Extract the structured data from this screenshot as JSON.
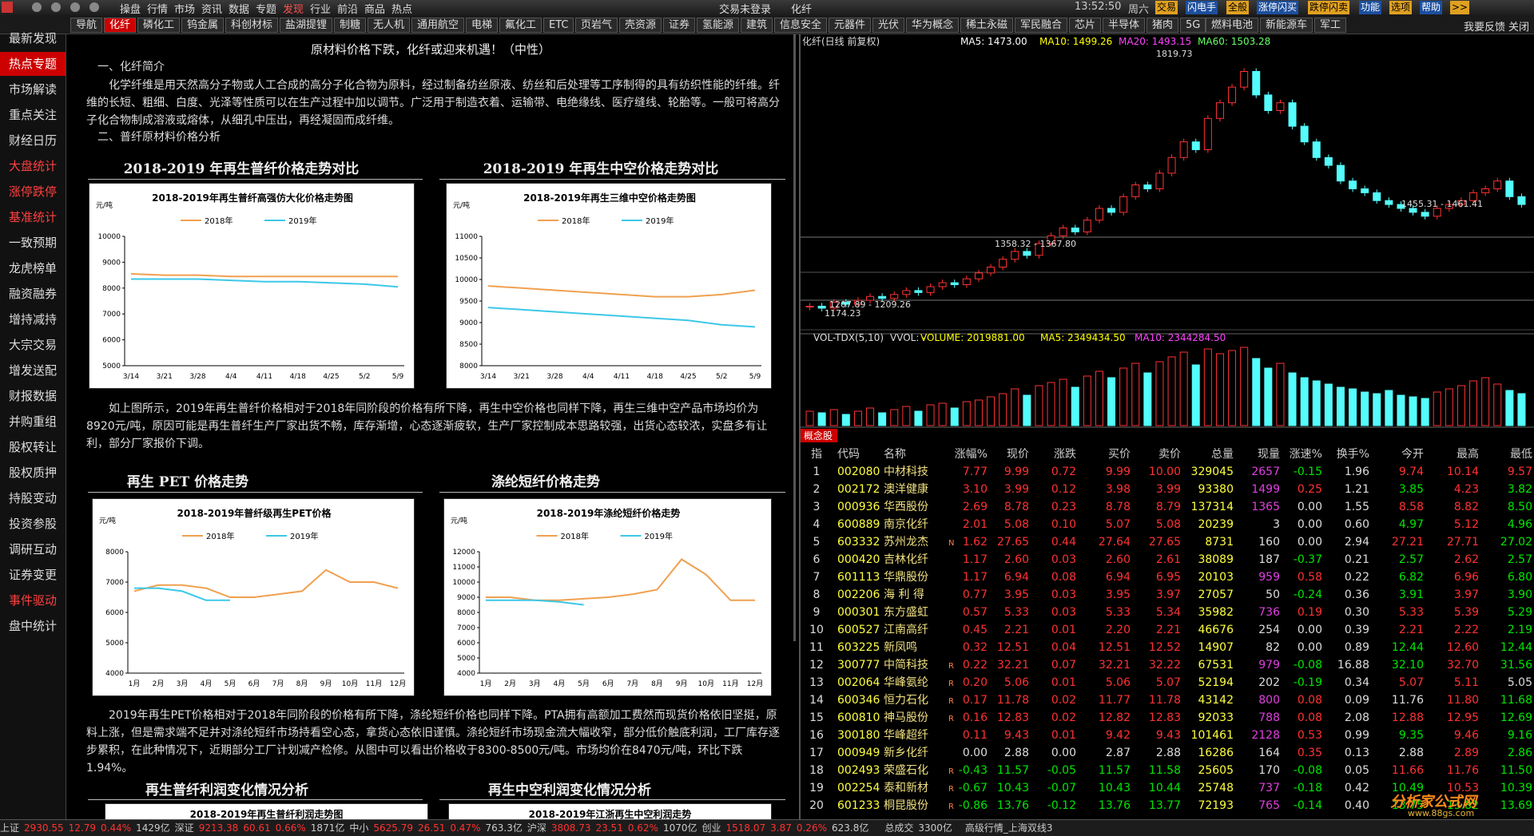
{
  "menu": [
    "操盘",
    "行情",
    "市场",
    "资讯",
    "数据",
    "专题",
    "发现",
    "行业",
    "前沿",
    "商品",
    "热点"
  ],
  "title_center": [
    "交易未登录",
    "化纤"
  ],
  "clock": [
    "13:52:50",
    "周六"
  ],
  "buttons": [
    "交易",
    "闪电手",
    "全般",
    "涨停闪买",
    "跌停闪卖",
    "功能",
    "选项",
    "帮助",
    ">>"
  ],
  "tabs": [
    "导航",
    "化纤",
    "磷化工",
    "钨金属",
    "科创材标",
    "盐湖提锂",
    "制糖",
    "无人机",
    "通用航空",
    "电梯",
    "氟化工",
    "ETC",
    "页岩气",
    "壳资源",
    "证券",
    "氢能源",
    "建筑",
    "信息安全",
    "元器件",
    "光伏",
    "华为概念",
    "稀土永磁",
    "军民融合",
    "芯片",
    "半导体",
    "猪肉",
    "5G",
    "燃料电池",
    "新能源车",
    "军工"
  ],
  "tab_actions": [
    "我要反馈",
    "关闭"
  ],
  "sidebar": [
    "最新发现",
    "热点专题",
    "市场解读",
    "重点关注",
    "财经日历",
    "大盘统计",
    "涨停跌停",
    "基准统计",
    "一致预期",
    "龙虎榜单",
    "融资融券",
    "增持减持",
    "大宗交易",
    "增发送配",
    "财报数据",
    "并购重组",
    "股权转让",
    "股权质押",
    "持股变动",
    "投资参股",
    "调研互动",
    "证券变更",
    "事件驱动",
    "盘中统计"
  ],
  "article": {
    "title": "原材料价格下跌，化纤或迎来机遇！（中性）",
    "h1": "一、化纤简介",
    "p1": "化学纤维是用天然高分子物或人工合成的高分子化合物为原料，经过制备纺丝原液、纺丝和后处理等工序制得的具有纺织性能的纤维。纤维的长短、粗细、白度、光泽等性质可以在生产过程中加以调节。广泛用于制造衣着、运输带、电绝缘线、医疗缝线、轮胎等。一般可将高分子化合物制成溶液或熔体，从细孔中压出，再经凝固而成纤维。",
    "h2": "二、普纤原材料价格分析",
    "p2": "如上图所示，2019年再生普纤价格相对于2018年同阶段的价格有所下降，再生中空价格也同样下降，再生三维中空产品市场均价为8920元/吨，原因可能是再生普纤生产厂家出货不畅，库存渐增，心态逐渐疲软，生产厂家控制成本思路较强，出货心态较浓，实盘多有让利，部分厂家报价下调。",
    "p3": "2019年再生PET价格相对于2018年同阶段的价格有所下降，涤纶短纤价格也同样下降。PTA拥有高额加工费然而现货价格依旧坚挺，原料上涨，但是需求端不足并对涤纶短纤市场持看空心态，拿货心态依旧谨慎。涤纶短纤市场现金流大幅收窄，部分低价触底利润，工厂库存逐步累积，在此种情况下，近期部分工厂计划减产检修。从图中可以看出价格收于8300-8500元/吨。市场均价在8470元/吨，环比下跌1.94%。",
    "headings": [
      "2018-2019 年再生普纤价格走势对比",
      "2018-2019 年再生中空价格走势对比",
      "再生 PET 价格走势",
      "涤纶短纤价格走势",
      "再生普纤利润变化情况分析",
      "再生中空利润变化情况分析"
    ],
    "partial_titles": [
      "2018-2019年再生普纤利润走势图",
      "2018-2019年江浙再生中空利润走势"
    ]
  },
  "chart_data": [
    {
      "type": "line",
      "title": "2018-2019年再生普纤高强仿大化价格走势图",
      "ylabel": "元/吨",
      "categories": [
        "3/14",
        "3/21",
        "3/28",
        "4/4",
        "4/11",
        "4/18",
        "4/25",
        "5/2",
        "5/9"
      ],
      "series": [
        {
          "name": "2018年",
          "color": "#f0a050",
          "values": [
            8550,
            8500,
            8500,
            8450,
            8450,
            8450,
            8450,
            8450,
            8450
          ]
        },
        {
          "name": "2019年",
          "color": "#3cc8e8",
          "values": [
            8350,
            8350,
            8350,
            8300,
            8250,
            8250,
            8200,
            8150,
            8050
          ]
        }
      ],
      "ylim": [
        5000,
        10000
      ],
      "yticks": [
        5000,
        6000,
        7000,
        8000,
        9000,
        10000
      ],
      "grid": false
    },
    {
      "type": "line",
      "title": "2018-2019年再生三维中空价格走势图",
      "ylabel": "元/吨",
      "categories": [
        "3/14",
        "3/21",
        "3/28",
        "4/4",
        "4/11",
        "4/18",
        "4/25",
        "5/2",
        "5/9"
      ],
      "series": [
        {
          "name": "2018年",
          "color": "#f0a050",
          "values": [
            9850,
            9800,
            9750,
            9700,
            9650,
            9600,
            9600,
            9650,
            9750
          ]
        },
        {
          "name": "2019年",
          "color": "#3cc8e8",
          "values": [
            9350,
            9300,
            9250,
            9200,
            9150,
            9100,
            9050,
            8950,
            8900
          ]
        }
      ],
      "ylim": [
        8000,
        11000
      ],
      "yticks": [
        8000,
        8500,
        9000,
        9500,
        10000,
        10500,
        11000
      ],
      "grid": false
    },
    {
      "type": "line",
      "title": "2018-2019年普纤级再生PET价格",
      "ylabel": "元/吨",
      "categories": [
        "1月",
        "2月",
        "3月",
        "4月",
        "5月",
        "6月",
        "7月",
        "8月",
        "9月",
        "10月",
        "11月",
        "12月"
      ],
      "series": [
        {
          "name": "2018年",
          "color": "#f0a050",
          "values": [
            6700,
            6900,
            6900,
            6800,
            6500,
            6500,
            6600,
            6700,
            7400,
            7000,
            7000,
            6800
          ]
        },
        {
          "name": "2019年",
          "color": "#3cc8e8",
          "values": [
            6800,
            6800,
            6700,
            6400,
            6400,
            null,
            null,
            null,
            null,
            null,
            null,
            null
          ]
        }
      ],
      "ylim": [
        4000,
        8000
      ],
      "yticks": [
        4000,
        5000,
        6000,
        7000,
        8000
      ],
      "grid": false
    },
    {
      "type": "line",
      "title": "2018-2019年涤纶短纤价格走势",
      "ylabel": "元/吨",
      "categories": [
        "1月",
        "2月",
        "3月",
        "4月",
        "5月",
        "6月",
        "7月",
        "8月",
        "9月",
        "10月",
        "11月",
        "12月"
      ],
      "series": [
        {
          "name": "2018年",
          "color": "#f0a050",
          "values": [
            9000,
            9000,
            8800,
            8800,
            8900,
            9000,
            9200,
            9500,
            11500,
            10500,
            8800,
            8800
          ]
        },
        {
          "name": "2019年",
          "color": "#3cc8e8",
          "values": [
            8800,
            8800,
            8800,
            8700,
            8500,
            null,
            null,
            null,
            null,
            null,
            null,
            null
          ]
        }
      ],
      "ylim": [
        4000,
        12000
      ],
      "yticks": [
        4000,
        5000,
        6000,
        7000,
        8000,
        9000,
        10000,
        11000,
        12000
      ],
      "grid": false
    },
    {
      "type": "kline",
      "title": "化纤(日线 前复权)",
      "indicators": [
        "MA5: 1473.00",
        "MA10: 1499.26",
        "MA20: 1493.15",
        "MA60: 1503.28"
      ],
      "annotations": [
        "1819.73",
        "1358.32 - 1367.80",
        "1207.89 - 1209.26",
        "1174.23",
        "1455.31 - 1461.41"
      ],
      "values": [
        1200,
        1195,
        1210,
        1205,
        1215,
        1225,
        1220,
        1230,
        1240,
        1235,
        1250,
        1260,
        1255,
        1270,
        1285,
        1300,
        1320,
        1340,
        1330,
        1360,
        1380,
        1400,
        1390,
        1420,
        1450,
        1440,
        1480,
        1510,
        1500,
        1540,
        1580,
        1620,
        1600,
        1680,
        1720,
        1760,
        1800,
        1740,
        1700,
        1720,
        1660,
        1620,
        1580,
        1560,
        1520,
        1500,
        1490,
        1470,
        1460,
        1450,
        1440,
        1430,
        1450,
        1460,
        1470,
        1490,
        1500,
        1520,
        1480,
        1460
      ],
      "ylim": [
        1150,
        1850
      ]
    },
    {
      "type": "bar",
      "title": "VOL-TDX(5,10)",
      "indicators": [
        "VVOL: -",
        "VOLUME: 2019881.00",
        "MA5: 2349434.50",
        "MA10: 2344284.50"
      ],
      "values": [
        900000,
        800000,
        1000000,
        700000,
        900000,
        1100000,
        800000,
        1000000,
        1200000,
        900000,
        1300000,
        1400000,
        1100000,
        1500000,
        1600000,
        1800000,
        2000000,
        2300000,
        1900000,
        2500000,
        2700000,
        2900000,
        2400000,
        3100000,
        3400000,
        3000000,
        3600000,
        3900000,
        3300000,
        4000000,
        4300000,
        4600000,
        3800000,
        4800000,
        4500000,
        4700000,
        4900000,
        4200000,
        3600000,
        3900000,
        3300000,
        3000000,
        2800000,
        2600000,
        2400000,
        2300000,
        2100000,
        2000000,
        2200000,
        1900000,
        1800000,
        1700000,
        2100000,
        2300000,
        2500000,
        2800000,
        3000000,
        2600000,
        2200000,
        2000000
      ],
      "ylim": [
        0,
        5000000
      ]
    }
  ],
  "table": {
    "label": "概念股",
    "columns": [
      "指",
      "代码",
      "名称",
      "涨幅%",
      "现价",
      "涨跌",
      "买价",
      "卖价",
      "总量",
      "现量",
      "涨速%",
      "换手%",
      "今开",
      "最高",
      "最低"
    ],
    "rows": [
      [
        "1",
        "002080",
        "中材科技",
        "7.77",
        "9.99",
        "0.72",
        "9.99",
        "10.00",
        "329045",
        "2657",
        "-0.15",
        "1.96",
        "9.74",
        "10.14",
        "9.57"
      ],
      [
        "2",
        "002172",
        "澳洋健康",
        "3.10",
        "3.99",
        "0.12",
        "3.98",
        "3.99",
        "93380",
        "1499",
        "0.25",
        "1.21",
        "3.85",
        "4.23",
        "3.82"
      ],
      [
        "3",
        "000936",
        "华西股份",
        "2.69",
        "8.78",
        "0.23",
        "8.78",
        "8.79",
        "137314",
        "1365",
        "0.00",
        "1.55",
        "8.58",
        "8.82",
        "8.50"
      ],
      [
        "4",
        "600889",
        "南京化纤",
        "2.01",
        "5.08",
        "0.10",
        "5.07",
        "5.08",
        "20239",
        "3",
        "0.00",
        "0.60",
        "4.97",
        "5.12",
        "4.96"
      ],
      [
        "5",
        "603332",
        "苏州龙杰",
        "1.62",
        "27.65",
        "0.44",
        "27.64",
        "27.65",
        "8731",
        "160",
        "0.00",
        "2.94",
        "27.21",
        "27.71",
        "27.02"
      ],
      [
        "6",
        "000420",
        "吉林化纤",
        "1.17",
        "2.60",
        "0.03",
        "2.60",
        "2.61",
        "38089",
        "187",
        "-0.37",
        "0.21",
        "2.57",
        "2.62",
        "2.57"
      ],
      [
        "7",
        "601113",
        "华鼎股份",
        "1.17",
        "6.94",
        "0.08",
        "6.94",
        "6.95",
        "20103",
        "959",
        "0.58",
        "0.22",
        "6.82",
        "6.96",
        "6.80"
      ],
      [
        "8",
        "002206",
        "海 利 得",
        "0.77",
        "3.95",
        "0.03",
        "3.95",
        "3.97",
        "27057",
        "50",
        "-0.24",
        "0.36",
        "3.91",
        "3.97",
        "3.90"
      ],
      [
        "9",
        "000301",
        "东方盛虹",
        "0.57",
        "5.33",
        "0.03",
        "5.33",
        "5.34",
        "35982",
        "736",
        "0.19",
        "0.30",
        "5.33",
        "5.39",
        "5.29"
      ],
      [
        "10",
        "600527",
        "江南高纤",
        "0.45",
        "2.21",
        "0.01",
        "2.20",
        "2.21",
        "46676",
        "254",
        "0.00",
        "0.39",
        "2.21",
        "2.22",
        "2.19"
      ],
      [
        "11",
        "603225",
        "新凤鸣",
        "0.32",
        "12.51",
        "0.04",
        "12.51",
        "12.52",
        "14907",
        "82",
        "0.00",
        "0.89",
        "12.44",
        "12.60",
        "12.44"
      ],
      [
        "12",
        "300777",
        "中简科技",
        "0.22",
        "32.21",
        "0.07",
        "32.21",
        "32.22",
        "67531",
        "979",
        "-0.08",
        "16.88",
        "32.10",
        "32.70",
        "31.56"
      ],
      [
        "13",
        "002064",
        "华峰氨纶",
        "0.20",
        "5.06",
        "0.01",
        "5.06",
        "5.07",
        "52194",
        "202",
        "-0.19",
        "0.34",
        "5.07",
        "5.11",
        "5.05"
      ],
      [
        "14",
        "600346",
        "恒力石化",
        "0.17",
        "11.78",
        "0.02",
        "11.77",
        "11.78",
        "43142",
        "800",
        "0.08",
        "0.09",
        "11.76",
        "11.80",
        "11.68"
      ],
      [
        "15",
        "600810",
        "神马股份",
        "0.16",
        "12.83",
        "0.02",
        "12.82",
        "12.83",
        "92033",
        "788",
        "0.08",
        "2.08",
        "12.88",
        "12.95",
        "12.69"
      ],
      [
        "16",
        "300180",
        "华峰超纤",
        "0.11",
        "9.43",
        "0.01",
        "9.42",
        "9.43",
        "101461",
        "2128",
        "0.53",
        "0.99",
        "9.35",
        "9.46",
        "9.16"
      ],
      [
        "17",
        "000949",
        "新乡化纤",
        "0.00",
        "2.88",
        "0.00",
        "2.87",
        "2.88",
        "16286",
        "164",
        "0.35",
        "0.13",
        "2.88",
        "2.89",
        "2.86"
      ],
      [
        "18",
        "002493",
        "荣盛石化",
        "-0.43",
        "11.57",
        "-0.05",
        "11.57",
        "11.58",
        "25605",
        "170",
        "-0.08",
        "0.05",
        "11.66",
        "11.76",
        "11.50"
      ],
      [
        "19",
        "002254",
        "泰和新材",
        "-0.67",
        "10.43",
        "-0.07",
        "10.43",
        "10.44",
        "25748",
        "737",
        "-0.18",
        "0.42",
        "10.49",
        "10.53",
        "10.39"
      ],
      [
        "20",
        "601233",
        "桐昆股份",
        "-0.86",
        "13.76",
        "-0.12",
        "13.76",
        "13.77",
        "72193",
        "765",
        "-0.14",
        "0.40",
        "13.75",
        "13.82",
        "13.69"
      ]
    ],
    "flags": [
      null,
      null,
      null,
      null,
      "N",
      null,
      null,
      null,
      null,
      null,
      null,
      "R",
      "R",
      "R",
      "R",
      null,
      null,
      "R",
      "R",
      "R"
    ]
  },
  "status_bar": {
    "indices": [
      {
        "name": "上证",
        "price": "2930.55",
        "change": "12.79",
        "pct": "0.44%",
        "amount": "1429亿"
      },
      {
        "name": "深证",
        "price": "9213.38",
        "change": "60.61",
        "pct": "0.66%",
        "amount": "1871亿"
      },
      {
        "name": "中小",
        "price": "5625.79",
        "change": "26.51",
        "pct": "0.47%",
        "amount": "763.3亿"
      },
      {
        "name": "沪深",
        "price": "3808.73",
        "change": "23.51",
        "pct": "0.62%",
        "amount": "1070亿"
      },
      {
        "name": "创业",
        "price": "1518.07",
        "change": "3.87",
        "pct": "0.26%",
        "amount": "623.8亿"
      }
    ],
    "total_label": "总成交",
    "total": "3300亿",
    "server": "高级行情_上海双线3"
  },
  "watermark": [
    "分析家公式网",
    "www.88gs.com"
  ]
}
